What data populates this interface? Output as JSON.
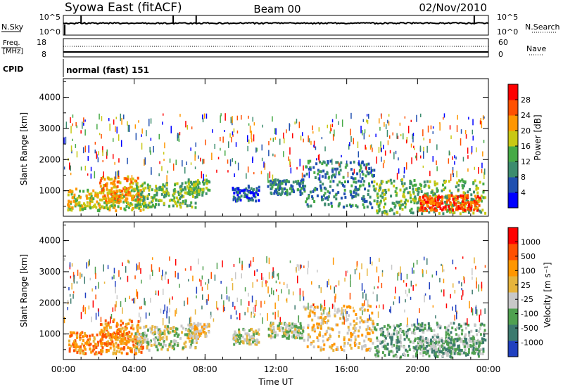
{
  "header": {
    "station": "Syowa East (fitACF)",
    "beam": "Beam 00",
    "date": "02/Nov/2010"
  },
  "top_strip": {
    "left_label": "N.Sky",
    "right_label": "N.Search",
    "left_ticks": [
      "10^5",
      "10^0"
    ],
    "right_ticks": [
      "10^5",
      "10^0"
    ]
  },
  "freq_strip": {
    "left_label_1": "Freq.",
    "left_label_2": "[MHz]",
    "right_label": "Nave",
    "left_ticks": [
      "18",
      "8"
    ],
    "right_ticks": [
      "60",
      "0"
    ]
  },
  "cpid": {
    "label": "CPID",
    "mode": "normal (fast) 151"
  },
  "x_axis": {
    "label": "Time UT",
    "ticks": [
      "00:00",
      "04:00",
      "08:00",
      "12:00",
      "16:00",
      "20:00",
      "00:00"
    ]
  },
  "power_panel": {
    "ylabel": "Slant Range [km]",
    "yticks": [
      "4000",
      "3000",
      "2000",
      "1000"
    ],
    "colorbar_label": "Power [dB]",
    "colorbar_ticks": [
      "28",
      "24",
      "20",
      "16",
      "12",
      "8",
      "4"
    ]
  },
  "velocity_panel": {
    "ylabel": "Slant Range [km]",
    "yticks": [
      "4000",
      "3000",
      "2000",
      "1000"
    ],
    "colorbar_label": "Velocity [m s⁻¹]",
    "colorbar_ticks": [
      "1000",
      "500",
      "100",
      "25",
      "-25",
      "-100",
      "-500",
      "-1000"
    ]
  },
  "chart_data": {
    "type": "heatmap",
    "x_unit": "hours UT",
    "xlim": [
      0,
      24
    ],
    "ylim_km": [
      180,
      4600
    ],
    "power_colors": [
      "#0000ff",
      "#2050b0",
      "#3c8c6e",
      "#46aa46",
      "#c8c814",
      "#ff9600",
      "#ff5000",
      "#ff0000"
    ],
    "velocity_colors": [
      "#2040c0",
      "#3c7a6e",
      "#50a050",
      "#c8c8c8",
      "#e6b43c",
      "#ff9600",
      "#ff5000",
      "#ff0000"
    ],
    "echo_bands": [
      {
        "t0": 0.2,
        "t1": 4.5,
        "r0": 400,
        "r1": 1100,
        "pw": 4,
        "vel": 5
      },
      {
        "t0": 2.0,
        "t1": 4.2,
        "r0": 700,
        "r1": 1500,
        "pw": 5,
        "vel": 5
      },
      {
        "t0": 4.0,
        "t1": 7.5,
        "r0": 500,
        "r1": 1300,
        "pw": 3,
        "vel": 3
      },
      {
        "t0": 7.0,
        "t1": 8.2,
        "r0": 900,
        "r1": 1400,
        "pw": 3,
        "vel": 4
      },
      {
        "t0": 9.5,
        "t1": 11.0,
        "r0": 700,
        "r1": 1200,
        "pw": 1,
        "vel": 3
      },
      {
        "t0": 11.5,
        "t1": 13.5,
        "r0": 900,
        "r1": 1400,
        "pw": 2,
        "vel": 3
      },
      {
        "t0": 13.5,
        "t1": 17.5,
        "r0": 500,
        "r1": 2000,
        "pw": 2,
        "vel": 4
      },
      {
        "t0": 17.5,
        "t1": 23.8,
        "r0": 300,
        "r1": 1400,
        "pw": 3,
        "vel": 2
      },
      {
        "t0": 20.0,
        "t1": 23.5,
        "r0": 400,
        "r1": 900,
        "pw": 6,
        "vel": 2
      }
    ]
  }
}
